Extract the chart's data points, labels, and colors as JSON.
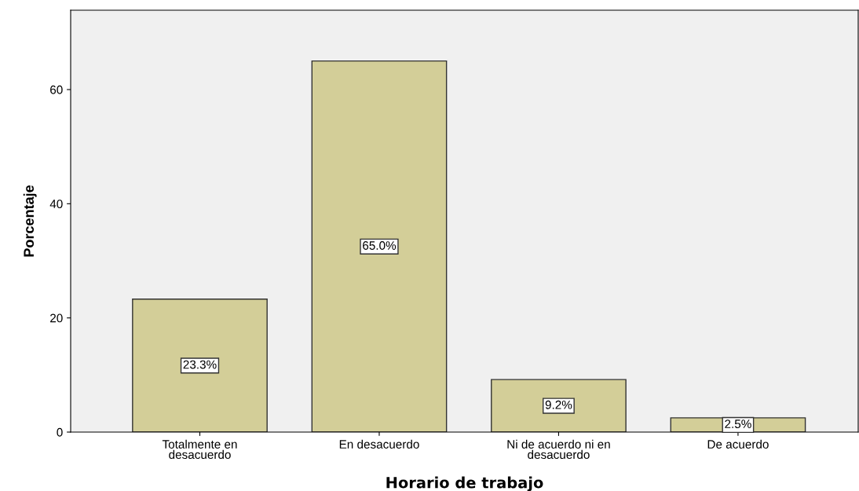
{
  "chart_data": {
    "type": "bar",
    "xlabel": "Horario de trabajo",
    "ylabel": "Porcentaje",
    "categories": [
      "Totalmente en\ndesacuerdo",
      "En desacuerdo",
      "Ni de acuerdo ni en\ndesacuerdo",
      "De acuerdo"
    ],
    "values": [
      23.3,
      65.0,
      9.2,
      2.5
    ],
    "value_labels": [
      "23.3%",
      "65.0%",
      "9.2%",
      "2.5%"
    ],
    "color": "#d3ce98",
    "ylim": [
      0,
      73.9
    ],
    "yticks": [
      0,
      20,
      40,
      60
    ],
    "grid": false,
    "legend": false
  }
}
